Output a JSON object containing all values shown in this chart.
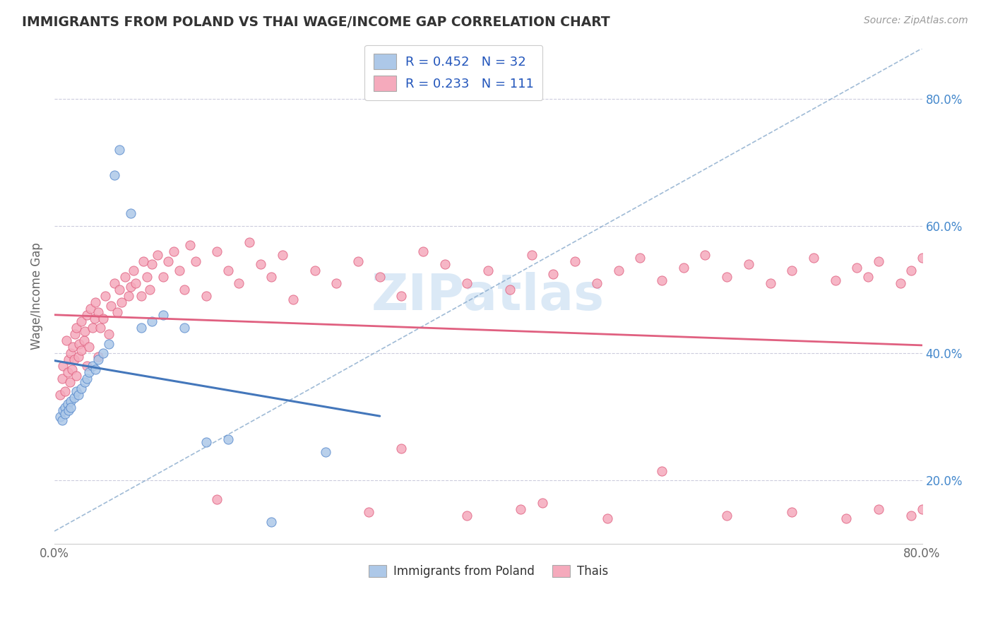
{
  "title": "IMMIGRANTS FROM POLAND VS THAI WAGE/INCOME GAP CORRELATION CHART",
  "source": "Source: ZipAtlas.com",
  "ylabel": "Wage/Income Gap",
  "xlim": [
    0.0,
    0.8
  ],
  "ylim": [
    0.1,
    0.88
  ],
  "xticks": [
    0.0,
    0.2,
    0.4,
    0.6,
    0.8
  ],
  "xtick_labels": [
    "0.0%",
    "",
    "",
    "",
    "80.0%"
  ],
  "ytick_positions": [
    0.2,
    0.4,
    0.6,
    0.8
  ],
  "ytick_labels_right": [
    "20.0%",
    "40.0%",
    "60.0%",
    "80.0%"
  ],
  "poland_color": "#adc8e8",
  "thai_color": "#f5aabc",
  "poland_edge": "#5588cc",
  "thai_edge": "#e06080",
  "poland_line_color": "#4477bb",
  "thai_line_color": "#e06080",
  "diag_color": "#88aacc",
  "watermark_color": "#b8d4ee",
  "watermark_text": "ZIPatlas",
  "grid_color": "#ccccdd",
  "poland_x": [
    0.005,
    0.007,
    0.008,
    0.01,
    0.01,
    0.012,
    0.013,
    0.015,
    0.015,
    0.018,
    0.02,
    0.022,
    0.025,
    0.028,
    0.03,
    0.032,
    0.035,
    0.038,
    0.04,
    0.045,
    0.05,
    0.055,
    0.06,
    0.07,
    0.08,
    0.09,
    0.1,
    0.12,
    0.14,
    0.16,
    0.2,
    0.25
  ],
  "poland_y": [
    0.3,
    0.295,
    0.31,
    0.315,
    0.305,
    0.32,
    0.31,
    0.325,
    0.315,
    0.33,
    0.34,
    0.335,
    0.345,
    0.355,
    0.36,
    0.37,
    0.38,
    0.375,
    0.39,
    0.4,
    0.415,
    0.68,
    0.72,
    0.62,
    0.44,
    0.45,
    0.46,
    0.44,
    0.26,
    0.265,
    0.135,
    0.245
  ],
  "thai_x": [
    0.005,
    0.007,
    0.008,
    0.01,
    0.011,
    0.012,
    0.013,
    0.014,
    0.015,
    0.016,
    0.017,
    0.018,
    0.019,
    0.02,
    0.02,
    0.022,
    0.023,
    0.025,
    0.025,
    0.027,
    0.028,
    0.03,
    0.03,
    0.032,
    0.033,
    0.035,
    0.037,
    0.038,
    0.04,
    0.04,
    0.042,
    0.045,
    0.047,
    0.05,
    0.052,
    0.055,
    0.058,
    0.06,
    0.062,
    0.065,
    0.068,
    0.07,
    0.073,
    0.075,
    0.08,
    0.082,
    0.085,
    0.088,
    0.09,
    0.095,
    0.1,
    0.105,
    0.11,
    0.115,
    0.12,
    0.125,
    0.13,
    0.14,
    0.15,
    0.16,
    0.17,
    0.18,
    0.19,
    0.2,
    0.21,
    0.22,
    0.24,
    0.26,
    0.28,
    0.3,
    0.32,
    0.34,
    0.36,
    0.38,
    0.4,
    0.42,
    0.44,
    0.46,
    0.48,
    0.5,
    0.52,
    0.54,
    0.56,
    0.58,
    0.6,
    0.62,
    0.64,
    0.66,
    0.68,
    0.7,
    0.72,
    0.74,
    0.75,
    0.76,
    0.78,
    0.79,
    0.8,
    0.32,
    0.56,
    0.43,
    0.15,
    0.29,
    0.38,
    0.45,
    0.51,
    0.62,
    0.68,
    0.73,
    0.76,
    0.79,
    0.8
  ],
  "thai_y": [
    0.335,
    0.36,
    0.38,
    0.34,
    0.42,
    0.37,
    0.39,
    0.355,
    0.4,
    0.375,
    0.41,
    0.39,
    0.43,
    0.365,
    0.44,
    0.395,
    0.415,
    0.405,
    0.45,
    0.42,
    0.435,
    0.38,
    0.46,
    0.41,
    0.47,
    0.44,
    0.455,
    0.48,
    0.395,
    0.465,
    0.44,
    0.455,
    0.49,
    0.43,
    0.475,
    0.51,
    0.465,
    0.5,
    0.48,
    0.52,
    0.49,
    0.505,
    0.53,
    0.51,
    0.49,
    0.545,
    0.52,
    0.5,
    0.54,
    0.555,
    0.52,
    0.545,
    0.56,
    0.53,
    0.5,
    0.57,
    0.545,
    0.49,
    0.56,
    0.53,
    0.51,
    0.575,
    0.54,
    0.52,
    0.555,
    0.485,
    0.53,
    0.51,
    0.545,
    0.52,
    0.49,
    0.56,
    0.54,
    0.51,
    0.53,
    0.5,
    0.555,
    0.525,
    0.545,
    0.51,
    0.53,
    0.55,
    0.515,
    0.535,
    0.555,
    0.52,
    0.54,
    0.51,
    0.53,
    0.55,
    0.515,
    0.535,
    0.52,
    0.545,
    0.51,
    0.53,
    0.55,
    0.25,
    0.215,
    0.155,
    0.17,
    0.15,
    0.145,
    0.165,
    0.14,
    0.145,
    0.15,
    0.14,
    0.155,
    0.145,
    0.155
  ]
}
